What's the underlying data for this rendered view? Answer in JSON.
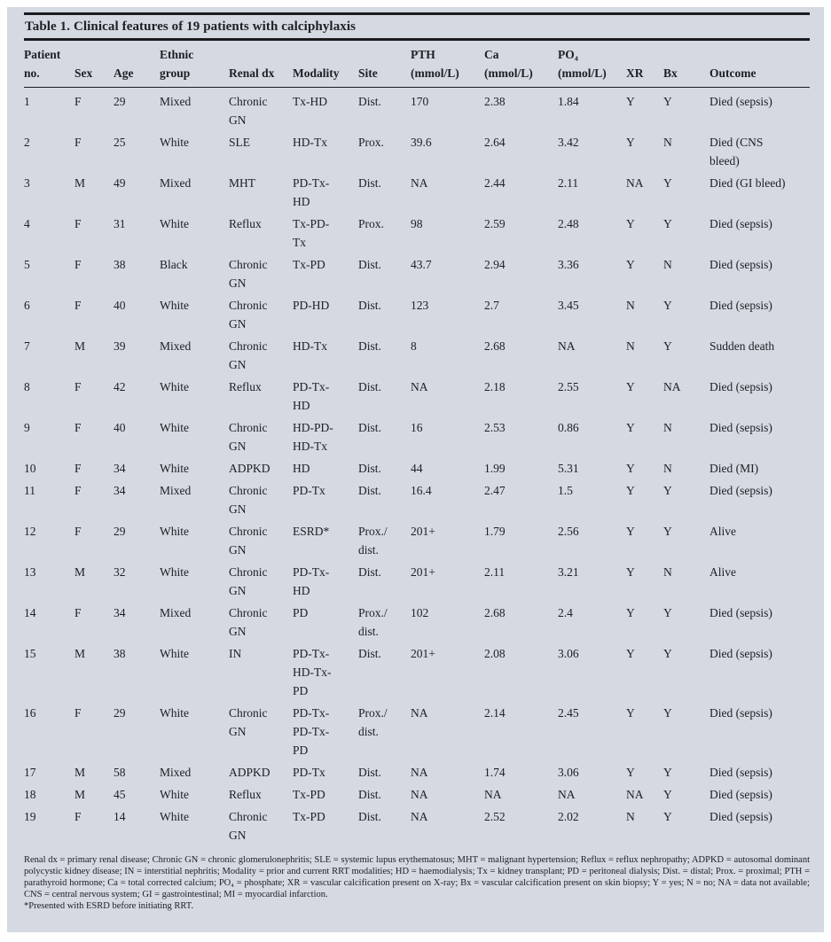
{
  "colors": {
    "panel_bg": "#d4d9e2",
    "rule": "#1b1b1e",
    "text": "#202024"
  },
  "table": {
    "title": "Table 1. Clinical features of 19 patients with calciphylaxis",
    "columns": [
      {
        "key": "patient_no",
        "label": "Patient\nno."
      },
      {
        "key": "sex",
        "label": "Sex"
      },
      {
        "key": "age",
        "label": "Age"
      },
      {
        "key": "ethnic_group",
        "label": "Ethnic\ngroup"
      },
      {
        "key": "renal_dx",
        "label": "Renal dx"
      },
      {
        "key": "modality",
        "label": "Modality"
      },
      {
        "key": "site",
        "label": "Site"
      },
      {
        "key": "pth",
        "label": "PTH\n(mmol/L)"
      },
      {
        "key": "ca",
        "label": "Ca\n(mmol/L)"
      },
      {
        "key": "po4",
        "label": "PO₄\n(mmol/L)"
      },
      {
        "key": "xr",
        "label": "XR"
      },
      {
        "key": "bx",
        "label": "Bx"
      },
      {
        "key": "outcome",
        "label": "Outcome"
      }
    ],
    "rows": [
      [
        "1",
        "F",
        "29",
        "Mixed",
        "Chronic\nGN",
        "Tx-HD",
        "Dist.",
        "170",
        "2.38",
        "1.84",
        "Y",
        "Y",
        "Died (sepsis)"
      ],
      [
        "2",
        "F",
        "25",
        "White",
        "SLE",
        "HD-Tx",
        "Prox.",
        "39.6",
        "2.64",
        "3.42",
        "Y",
        "N",
        "Died (CNS\nbleed)"
      ],
      [
        "3",
        "M",
        "49",
        "Mixed",
        "MHT",
        "PD-Tx-\nHD",
        "Dist.",
        "NA",
        "2.44",
        "2.11",
        "NA",
        "Y",
        "Died (GI bleed)"
      ],
      [
        "4",
        "F",
        "31",
        "White",
        "Reflux",
        "Tx-PD-\nTx",
        "Prox.",
        "98",
        "2.59",
        "2.48",
        "Y",
        "Y",
        "Died (sepsis)"
      ],
      [
        "5",
        "F",
        "38",
        "Black",
        "Chronic\nGN",
        "Tx-PD",
        "Dist.",
        "43.7",
        "2.94",
        "3.36",
        "Y",
        "N",
        "Died (sepsis)"
      ],
      [
        "6",
        "F",
        "40",
        "White",
        "Chronic\nGN",
        "PD-HD",
        "Dist.",
        "123",
        "2.7",
        "3.45",
        "N",
        "Y",
        "Died (sepsis)"
      ],
      [
        "7",
        "M",
        "39",
        "Mixed",
        "Chronic\nGN",
        "HD-Tx",
        "Dist.",
        "8",
        "2.68",
        "NA",
        "N",
        "Y",
        "Sudden death"
      ],
      [
        "8",
        "F",
        "42",
        "White",
        "Reflux",
        "PD-Tx-\nHD",
        "Dist.",
        "NA",
        "2.18",
        "2.55",
        "Y",
        "NA",
        "Died (sepsis)"
      ],
      [
        "9",
        "F",
        "40",
        "White",
        "Chronic\nGN",
        "HD-PD-\nHD-Tx",
        "Dist.",
        "16",
        "2.53",
        "0.86",
        "Y",
        "N",
        "Died (sepsis)"
      ],
      [
        "10",
        "F",
        "34",
        "White",
        "ADPKD",
        "HD",
        "Dist.",
        "44",
        "1.99",
        "5.31",
        "Y",
        "N",
        "Died (MI)"
      ],
      [
        "11",
        "F",
        "34",
        "Mixed",
        "Chronic\nGN",
        "PD-Tx",
        "Dist.",
        "16.4",
        "2.47",
        "1.5",
        "Y",
        "Y",
        "Died (sepsis)"
      ],
      [
        "12",
        "F",
        "29",
        "White",
        "Chronic\nGN",
        "ESRD*",
        "Prox./\ndist.",
        "201+",
        "1.79",
        "2.56",
        "Y",
        "Y",
        "Alive"
      ],
      [
        "13",
        "M",
        "32",
        "White",
        "Chronic\nGN",
        "PD-Tx-\nHD",
        "Dist.",
        "201+",
        "2.11",
        "3.21",
        "Y",
        "N",
        "Alive"
      ],
      [
        "14",
        "F",
        "34",
        "Mixed",
        "Chronic\nGN",
        "PD",
        "Prox./\ndist.",
        "102",
        "2.68",
        "2.4",
        "Y",
        "Y",
        "Died (sepsis)"
      ],
      [
        "15",
        "M",
        "38",
        "White",
        "IN",
        "PD-Tx-\nHD-Tx-\nPD",
        "Dist.",
        "201+",
        "2.08",
        "3.06",
        "Y",
        "Y",
        "Died (sepsis)"
      ],
      [
        "16",
        "F",
        "29",
        "White",
        "Chronic\nGN",
        "PD-Tx-\nPD-Tx-\nPD",
        "Prox./\ndist.",
        "NA",
        "2.14",
        "2.45",
        "Y",
        "Y",
        "Died (sepsis)"
      ],
      [
        "17",
        "M",
        "58",
        "Mixed",
        "ADPKD",
        "PD-Tx",
        "Dist.",
        "NA",
        "1.74",
        "3.06",
        "Y",
        "Y",
        "Died (sepsis)"
      ],
      [
        "18",
        "M",
        "45",
        "White",
        "Reflux",
        "Tx-PD",
        "Dist.",
        "NA",
        "NA",
        "NA",
        "NA",
        "Y",
        "Died (sepsis)"
      ],
      [
        "19",
        "F",
        "14",
        "White",
        "Chronic\nGN",
        "Tx-PD",
        "Dist.",
        "NA",
        "2.52",
        "2.02",
        "N",
        "Y",
        "Died (sepsis)"
      ]
    ],
    "footnote": "Renal dx = primary renal disease; Chronic GN = chronic glomerulonephritis; SLE = systemic lupus erythematosus; MHT = malignant hypertension; Reflux = reflux nephropathy; ADPKD = autosomal dominant polycystic kidney disease; IN = interstitial nephritis; Modality = prior and current RRT modalities; HD = haemodialysis; Tx = kidney transplant; PD = peritoneal dialysis; Dist. = distal; Prox. = proximal; PTH = parathyroid hormone; Ca = total corrected calcium; PO₄ = phosphate; XR = vascular calcification present on X-ray; Bx = vascular calcification present on skin biopsy; Y = yes; N = no; NA = data not available; CNS = central nervous system; GI = gastrointestinal; MI = myocardial infarction.",
    "footnote_asterisk": "*Presented with ESRD before initiating RRT."
  }
}
